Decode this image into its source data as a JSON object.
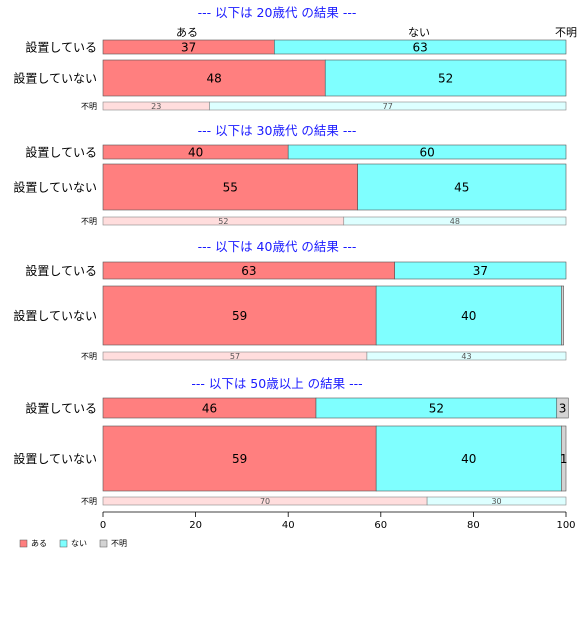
{
  "chart_data": {
    "type": "bar",
    "orientation": "horizontal-stacked-100",
    "xlim": [
      0,
      100
    ],
    "x_ticks": [
      0,
      20,
      40,
      60,
      80,
      100
    ],
    "top_column_labels": [
      "ある",
      "ない",
      "不明"
    ],
    "legend": {
      "position": "bottom-left",
      "entries": [
        {
          "label": "ある",
          "color": "#ff7f7f"
        },
        {
          "label": "ない",
          "color": "#7fffff"
        },
        {
          "label": "不明",
          "color": "#d3d3d3"
        }
      ]
    },
    "panels": [
      {
        "title": "--- 以下は 20歳代 の結果 ---",
        "rows": [
          {
            "label": "設置している",
            "size": "large",
            "values": [
              37,
              63,
              0
            ],
            "value_labels": [
              "37",
              "63",
              ""
            ]
          },
          {
            "label": "設置していない",
            "size": "large",
            "values": [
              48,
              52,
              0
            ],
            "value_labels": [
              "48",
              "52",
              ""
            ]
          },
          {
            "label": "不明",
            "size": "small",
            "values": [
              23,
              77,
              0
            ],
            "value_labels": [
              "23",
              "77",
              ""
            ]
          }
        ]
      },
      {
        "title": "--- 以下は 30歳代 の結果 ---",
        "rows": [
          {
            "label": "設置している",
            "size": "large",
            "values": [
              40,
              60,
              0
            ],
            "value_labels": [
              "40",
              "60",
              ""
            ]
          },
          {
            "label": "設置していない",
            "size": "large",
            "values": [
              55,
              45,
              0
            ],
            "value_labels": [
              "55",
              "45",
              ""
            ]
          },
          {
            "label": "不明",
            "size": "small",
            "values": [
              52,
              48,
              0
            ],
            "value_labels": [
              "52",
              "48",
              ""
            ]
          }
        ]
      },
      {
        "title": "--- 以下は 40歳代 の結果 ---",
        "rows": [
          {
            "label": "設置している",
            "size": "large",
            "values": [
              63,
              37,
              0
            ],
            "value_labels": [
              "63",
              "37",
              ""
            ]
          },
          {
            "label": "設置していない",
            "size": "large",
            "values": [
              59,
              40,
              0.5
            ],
            "value_labels": [
              "59",
              "40",
              ""
            ]
          },
          {
            "label": "不明",
            "size": "small",
            "values": [
              57,
              43,
              0
            ],
            "value_labels": [
              "57",
              "43",
              ""
            ]
          }
        ]
      },
      {
        "title": "--- 以下は 50歳以上 の結果 ---",
        "rows": [
          {
            "label": "設置している",
            "size": "large",
            "values": [
              46,
              52,
              2.5
            ],
            "value_labels": [
              "46",
              "52",
              "3"
            ]
          },
          {
            "label": "設置していない",
            "size": "large",
            "values": [
              59,
              40,
              1
            ],
            "value_labels": [
              "59",
              "40",
              "1"
            ]
          },
          {
            "label": "不明",
            "size": "small",
            "values": [
              70,
              30,
              0
            ],
            "value_labels": [
              "70",
              "30",
              ""
            ]
          }
        ]
      }
    ]
  }
}
